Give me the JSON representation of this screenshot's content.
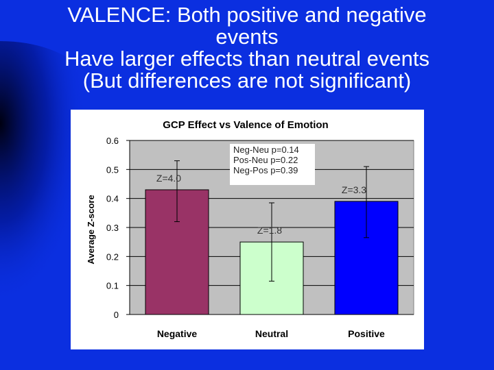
{
  "slide": {
    "title_lines": [
      "VALENCE: Both positive and negative",
      "events",
      "Have larger effects than neutral events",
      "(But differences are not significant)"
    ]
  },
  "colors": {
    "background": "#0b2fe0",
    "plot_area": "#c0c0c0",
    "negative_bar": "#993366",
    "neutral_bar": "#ccffcc",
    "positive_bar": "#0000ff"
  },
  "chart_data": {
    "type": "bar",
    "title": "GCP Effect vs Valence of Emotion",
    "xlabel": "",
    "ylabel": "Average Z-score",
    "categories": [
      "Negative",
      "Neutral",
      "Positive"
    ],
    "values": [
      0.43,
      0.25,
      0.39
    ],
    "error_low": [
      0.32,
      0.115,
      0.265
    ],
    "error_high": [
      0.53,
      0.385,
      0.51
    ],
    "bar_colors": [
      "#993366",
      "#ccffcc",
      "#0000ff"
    ],
    "data_labels": [
      "Z=4.0",
      "Z=1.8",
      "Z=3.3"
    ],
    "ylim": [
      0,
      0.6
    ],
    "yticks": [
      0,
      0.1,
      0.2,
      0.3,
      0.4,
      0.5,
      0.6
    ],
    "ytick_labels": [
      "0",
      "0.1",
      "0.2",
      "0.3",
      "0.4",
      "0.5",
      "0.6"
    ],
    "grid": true,
    "legend": "none",
    "annotations": [
      "Neg-Neu p=0.14",
      "Pos-Neu p=0.22",
      "Neg-Pos p=0.39"
    ]
  }
}
